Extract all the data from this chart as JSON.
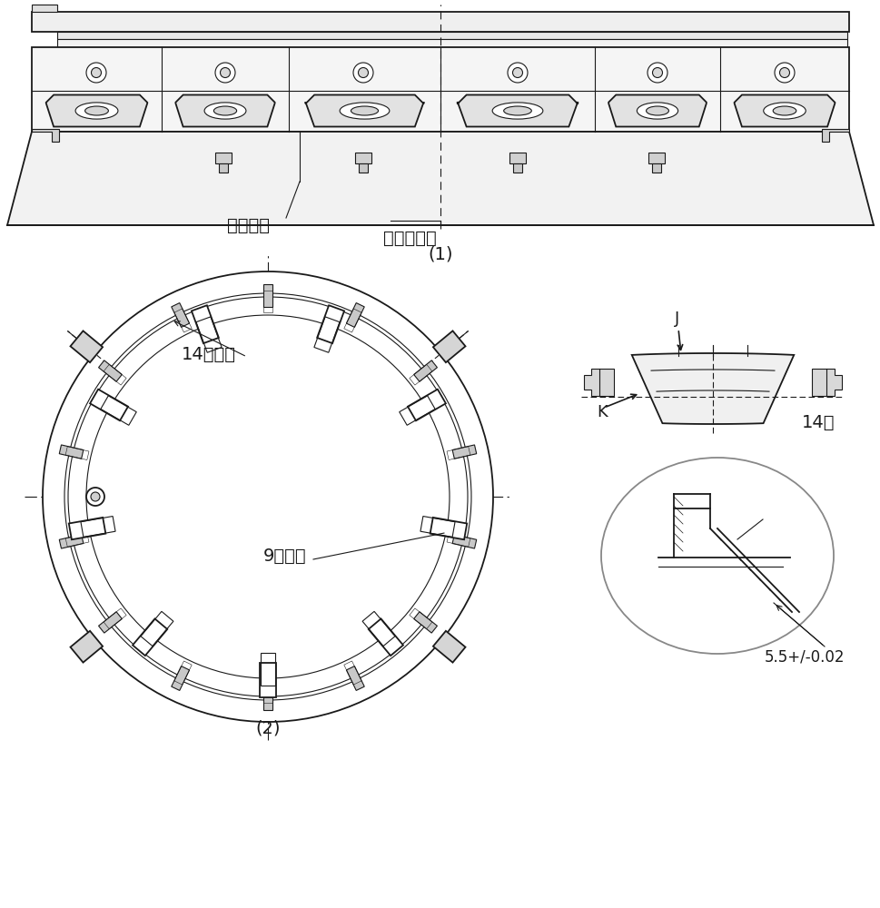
{
  "title_1": "(1)",
  "title_2": "(2)",
  "label_needs_machining": "需加工处",
  "label_weld_deformation": "焊接变形面",
  "label_14_boss": "14处凸台",
  "label_9_groove": "9处凹槽",
  "label_14_places": "14处",
  "label_dimension": "5.5+/-0.02",
  "label_J": "J",
  "label_K": "K",
  "bg_color": "#ffffff",
  "line_color": "#1a1a1a",
  "font_size": 14
}
